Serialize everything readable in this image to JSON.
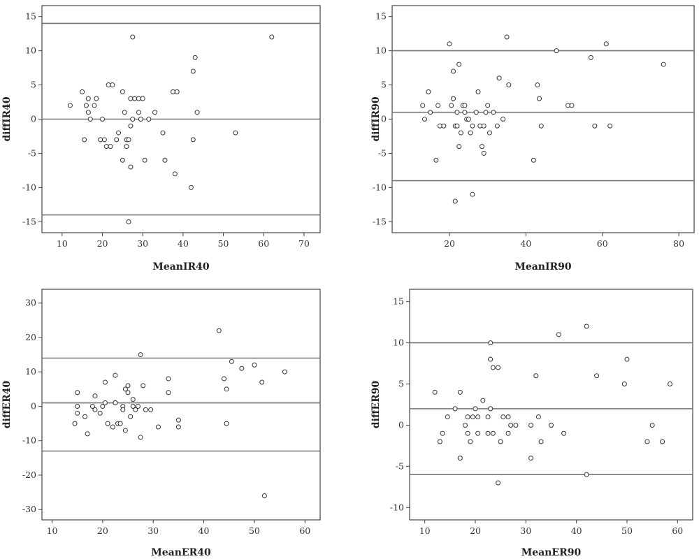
{
  "chart_data": [
    {
      "type": "scatter",
      "xlabel": "MeanIR40",
      "ylabel": "diffIR40",
      "xlim": [
        5,
        74
      ],
      "ylim": [
        -16.6,
        16.6
      ],
      "xticks": [
        10,
        20,
        30,
        40,
        50,
        60,
        70
      ],
      "yticks": [
        -15,
        -10,
        -5,
        0,
        5,
        10,
        15
      ],
      "reference_lines": [
        14,
        0,
        -14
      ],
      "points": [
        [
          12,
          2
        ],
        [
          15,
          4
        ],
        [
          15.5,
          -3
        ],
        [
          16,
          2
        ],
        [
          16.5,
          3
        ],
        [
          16.5,
          1
        ],
        [
          17,
          0
        ],
        [
          18,
          2
        ],
        [
          18.5,
          3
        ],
        [
          19.5,
          -3
        ],
        [
          20,
          0
        ],
        [
          20.5,
          -3
        ],
        [
          21,
          -4
        ],
        [
          21.5,
          5
        ],
        [
          22,
          -4
        ],
        [
          22.5,
          5
        ],
        [
          23.5,
          -3
        ],
        [
          24,
          -2
        ],
        [
          25,
          4
        ],
        [
          25,
          -6
        ],
        [
          25.5,
          1
        ],
        [
          26,
          -3
        ],
        [
          26,
          -4
        ],
        [
          26.5,
          -3
        ],
        [
          26.5,
          -15
        ],
        [
          27,
          3
        ],
        [
          27,
          -1
        ],
        [
          27,
          -7
        ],
        [
          27.5,
          12
        ],
        [
          27.5,
          0
        ],
        [
          28,
          3
        ],
        [
          29,
          3
        ],
        [
          29,
          1
        ],
        [
          29.5,
          0
        ],
        [
          30,
          3
        ],
        [
          30.5,
          -6
        ],
        [
          31.5,
          0
        ],
        [
          33,
          1
        ],
        [
          35,
          -2
        ],
        [
          35.5,
          -6
        ],
        [
          37.5,
          4
        ],
        [
          38,
          -8
        ],
        [
          38.5,
          4
        ],
        [
          42,
          -10
        ],
        [
          42.5,
          7
        ],
        [
          42.5,
          -3
        ],
        [
          43,
          9
        ],
        [
          43.5,
          1
        ],
        [
          53,
          -2
        ],
        [
          62,
          12
        ]
      ]
    },
    {
      "type": "scatter",
      "xlabel": "MeanIR90",
      "ylabel": "diffIR90",
      "xlim": [
        5,
        84
      ],
      "ylim": [
        -16.6,
        16.6
      ],
      "xticks": [
        20,
        40,
        60,
        80
      ],
      "yticks": [
        -15,
        -10,
        -5,
        0,
        5,
        10,
        15
      ],
      "reference_lines": [
        10,
        1,
        -9
      ],
      "points": [
        [
          13,
          2
        ],
        [
          13.5,
          0
        ],
        [
          14.5,
          4
        ],
        [
          15,
          1
        ],
        [
          16.5,
          -6
        ],
        [
          17,
          2
        ],
        [
          17.5,
          -1
        ],
        [
          18.5,
          -1
        ],
        [
          20,
          11
        ],
        [
          20.5,
          2
        ],
        [
          21,
          3
        ],
        [
          21,
          7
        ],
        [
          21.5,
          -1
        ],
        [
          21.5,
          -12
        ],
        [
          22,
          1
        ],
        [
          22,
          -1
        ],
        [
          22.5,
          8
        ],
        [
          22.5,
          -4
        ],
        [
          23,
          -2
        ],
        [
          23.5,
          2
        ],
        [
          24,
          2
        ],
        [
          24,
          1
        ],
        [
          24.5,
          0
        ],
        [
          25,
          0
        ],
        [
          25.5,
          -2
        ],
        [
          26,
          -1
        ],
        [
          26,
          -11
        ],
        [
          27,
          1
        ],
        [
          27.5,
          4
        ],
        [
          28,
          -1
        ],
        [
          28.5,
          -4
        ],
        [
          29,
          -1
        ],
        [
          29.5,
          1
        ],
        [
          29,
          -5
        ],
        [
          30,
          2
        ],
        [
          30.5,
          -2
        ],
        [
          31.5,
          1
        ],
        [
          32.5,
          -1
        ],
        [
          33,
          6
        ],
        [
          34,
          0
        ],
        [
          35,
          12
        ],
        [
          35.5,
          5
        ],
        [
          42,
          -6
        ],
        [
          43,
          5
        ],
        [
          43.5,
          3
        ],
        [
          44,
          -1
        ],
        [
          48,
          10
        ],
        [
          51,
          2
        ],
        [
          52,
          2
        ],
        [
          57,
          9
        ],
        [
          58,
          -1
        ],
        [
          61,
          11
        ],
        [
          62,
          -1
        ],
        [
          76,
          8
        ]
      ]
    },
    {
      "type": "scatter",
      "xlabel": "MeanER40",
      "ylabel": "diffER40",
      "xlim": [
        8,
        63
      ],
      "ylim": [
        -33,
        34
      ],
      "xticks": [
        10,
        20,
        30,
        40,
        50,
        60
      ],
      "yticks": [
        -30,
        -20,
        -10,
        0,
        10,
        20,
        30
      ],
      "reference_lines": [
        14,
        1,
        -13
      ],
      "points": [
        [
          14.5,
          -5
        ],
        [
          15,
          4
        ],
        [
          15,
          0
        ],
        [
          15,
          -2
        ],
        [
          16.5,
          -3
        ],
        [
          17,
          -8
        ],
        [
          18,
          0
        ],
        [
          18.5,
          3
        ],
        [
          18.5,
          -1
        ],
        [
          19.5,
          -2
        ],
        [
          20,
          0
        ],
        [
          20.5,
          7
        ],
        [
          20.5,
          1
        ],
        [
          21,
          -5
        ],
        [
          22,
          -6
        ],
        [
          22.5,
          9
        ],
        [
          22.5,
          1
        ],
        [
          22.5,
          1
        ],
        [
          23,
          -5
        ],
        [
          23.5,
          -5
        ],
        [
          24,
          0
        ],
        [
          24,
          -1
        ],
        [
          24.5,
          -7
        ],
        [
          24.5,
          5
        ],
        [
          25,
          6
        ],
        [
          25,
          4
        ],
        [
          25.5,
          -3
        ],
        [
          26,
          2
        ],
        [
          26,
          0
        ],
        [
          26.5,
          -1
        ],
        [
          27,
          0
        ],
        [
          27.5,
          15
        ],
        [
          27.5,
          -9
        ],
        [
          28,
          6
        ],
        [
          28.5,
          -1
        ],
        [
          29.5,
          -1
        ],
        [
          31,
          -6
        ],
        [
          33,
          8
        ],
        [
          33,
          4
        ],
        [
          35,
          -4
        ],
        [
          35,
          -6
        ],
        [
          43,
          22
        ],
        [
          44,
          8
        ],
        [
          44.5,
          5
        ],
        [
          44.5,
          -5
        ],
        [
          45.5,
          13
        ],
        [
          47.5,
          11
        ],
        [
          50,
          12
        ],
        [
          51.5,
          7
        ],
        [
          52,
          -26
        ],
        [
          56,
          10
        ]
      ]
    },
    {
      "type": "scatter",
      "xlabel": "MeanER90",
      "ylabel": "diffER90",
      "xlim": [
        7,
        63
      ],
      "ylim": [
        -11.5,
        16.5
      ],
      "xticks": [
        10,
        20,
        30,
        40,
        50,
        60
      ],
      "yticks": [
        -10,
        -5,
        0,
        5,
        10,
        15
      ],
      "reference_lines": [
        10,
        2,
        -6
      ],
      "points": [
        [
          12,
          4
        ],
        [
          13,
          -2
        ],
        [
          13.5,
          -1
        ],
        [
          14.5,
          1
        ],
        [
          16,
          2
        ],
        [
          17,
          4
        ],
        [
          17,
          -4
        ],
        [
          18,
          0
        ],
        [
          18.5,
          1
        ],
        [
          18.5,
          -1
        ],
        [
          19,
          -2
        ],
        [
          19.5,
          1
        ],
        [
          20,
          2
        ],
        [
          20.5,
          1
        ],
        [
          20.5,
          -1
        ],
        [
          21.5,
          3
        ],
        [
          22.5,
          1
        ],
        [
          22.5,
          -1
        ],
        [
          23,
          10
        ],
        [
          23,
          8
        ],
        [
          23,
          8
        ],
        [
          23,
          2
        ],
        [
          23,
          2
        ],
        [
          23.5,
          -1
        ],
        [
          23.5,
          7
        ],
        [
          24.5,
          7
        ],
        [
          24.5,
          -7
        ],
        [
          25,
          -2
        ],
        [
          25.5,
          1
        ],
        [
          26.5,
          1
        ],
        [
          26.5,
          -1
        ],
        [
          27,
          0
        ],
        [
          28,
          0
        ],
        [
          31,
          0
        ],
        [
          31,
          -4
        ],
        [
          32,
          6
        ],
        [
          32.5,
          1
        ],
        [
          33,
          -2
        ],
        [
          35,
          0
        ],
        [
          36.5,
          11
        ],
        [
          37.5,
          -1
        ],
        [
          42,
          12
        ],
        [
          42,
          -6
        ],
        [
          44,
          6
        ],
        [
          49.5,
          5
        ],
        [
          50,
          8
        ],
        [
          54,
          -2
        ],
        [
          55,
          0
        ],
        [
          57,
          -2
        ],
        [
          58.5,
          5
        ]
      ]
    }
  ]
}
